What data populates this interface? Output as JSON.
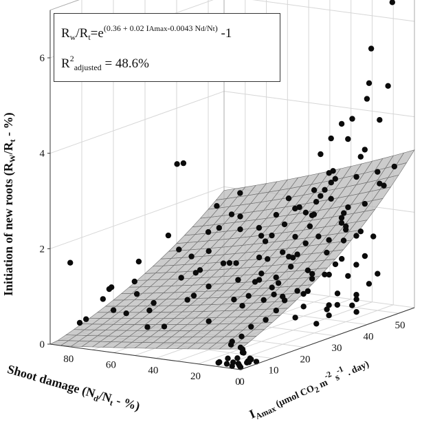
{
  "chart_data": {
    "type": "scatter",
    "subtype": "3d-scatter-with-fitted-surface",
    "equation": {
      "lhs_main": "R",
      "lhs_sub_w": "w",
      "slash": "/",
      "lhs_sub_t": "t",
      "eq": "=e",
      "exponent_a": "(0.36 + 0.02 I",
      "exponent_sub_amax": "Amax",
      "exponent_b": "-0.0043 N",
      "exponent_sub_d": "d",
      "exponent_c": "/N",
      "exponent_sub_t": "t",
      "exponent_d": ")",
      "tail": " -1"
    },
    "r2": {
      "main": "R",
      "sup": "2",
      "sub": "adjusted",
      "value": " = 48.6%"
    },
    "ylabel": {
      "a": "Initiation of new roots (R",
      "sub_w": "W",
      "b": "/R",
      "sub_t": "t",
      "c": " - %)"
    },
    "xlabel_damage": {
      "a": "Shoot damage (N",
      "sub_d": "d",
      "b": "/N",
      "sub_t": "t",
      "c": " - %)"
    },
    "xlabel_iamax": {
      "a": "I",
      "sub": "Amax",
      "b": " (μmol CO",
      "sub2": "2",
      "c": " m",
      "sup1": "-2",
      "d": " s",
      "sup2": "-1",
      "e": " . day)"
    },
    "z_ticks": [
      "0",
      "2",
      "4",
      "6"
    ],
    "damage_ticks": [
      "80",
      "60",
      "40",
      "20",
      "0"
    ],
    "iamax_ticks": [
      "0",
      "10",
      "20",
      "30",
      "40",
      "50"
    ],
    "zlim": [
      0,
      7
    ],
    "damage_range": [
      0,
      90
    ],
    "iamax_range": [
      0,
      55
    ],
    "grid": true,
    "surface_coefficients": {
      "intercept": 0.36,
      "iamax": 0.02,
      "damage": -0.0043
    },
    "points": [
      [
        0,
        0,
        0.05
      ],
      [
        1,
        0,
        0.12
      ],
      [
        2,
        1,
        0.05
      ],
      [
        0,
        2,
        0.1
      ],
      [
        3,
        1,
        0.2
      ],
      [
        2,
        2,
        0.3
      ],
      [
        4,
        0,
        0.05
      ],
      [
        1,
        3,
        0.1
      ],
      [
        3,
        2,
        0.4
      ],
      [
        5,
        1,
        0.1
      ],
      [
        2,
        4,
        0.05
      ],
      [
        4,
        3,
        0.6
      ],
      [
        6,
        0,
        0.2
      ],
      [
        8,
        1,
        0.05
      ],
      [
        5,
        4,
        0.3
      ],
      [
        3,
        5,
        0.1
      ],
      [
        7,
        2,
        0.5
      ],
      [
        10,
        0,
        0.1
      ],
      [
        6,
        5,
        0.2
      ],
      [
        4,
        6,
        0.05
      ],
      [
        9,
        3,
        0.4
      ],
      [
        12,
        1,
        0.05
      ],
      [
        1,
        4,
        0.8
      ],
      [
        0,
        5,
        0.05
      ],
      [
        10,
        34,
        0.4
      ],
      [
        15,
        38,
        0.15
      ],
      [
        8,
        36,
        0.7
      ],
      [
        18,
        40,
        0.3
      ],
      [
        12,
        42,
        0.9
      ],
      [
        20,
        44,
        0.2
      ],
      [
        5,
        40,
        0.5
      ],
      [
        22,
        36,
        1.1
      ],
      [
        14,
        46,
        0.4
      ],
      [
        25,
        38,
        0.6
      ],
      [
        7,
        44,
        1.3
      ],
      [
        30,
        40,
        0.2
      ],
      [
        17,
        34,
        1.0
      ],
      [
        2,
        38,
        0.3
      ],
      [
        26,
        44,
        0.8
      ],
      [
        11,
        48,
        0.6
      ],
      [
        33,
        42,
        0.4
      ],
      [
        4,
        46,
        0.9
      ],
      [
        28,
        34,
        1.4
      ],
      [
        19,
        48,
        0.1
      ],
      [
        36,
        40,
        1.0
      ],
      [
        9,
        30,
        0.2
      ],
      [
        24,
        30,
        0.6
      ],
      [
        15,
        28,
        0.9
      ],
      [
        6,
        32,
        1.2
      ],
      [
        31,
        32,
        0.3
      ],
      [
        13,
        26,
        0.4
      ],
      [
        21,
        42,
        1.6
      ],
      [
        38,
        36,
        0.5
      ],
      [
        3,
        34,
        1.5
      ],
      [
        16,
        44,
        1.8
      ],
      [
        10,
        40,
        2.0
      ],
      [
        23,
        38,
        2.2
      ],
      [
        27,
        40,
        1.9
      ],
      [
        5,
        36,
        2.4
      ],
      [
        14,
        38,
        2.6
      ],
      [
        19,
        36,
        2.8
      ],
      [
        8,
        42,
        3.0
      ],
      [
        12,
        36,
        3.2
      ],
      [
        25,
        42,
        2.5
      ],
      [
        3,
        40,
        3.5
      ],
      [
        17,
        40,
        3.8
      ],
      [
        9,
        38,
        4.2
      ],
      [
        6,
        44,
        4.6
      ],
      [
        15,
        42,
        2.1
      ],
      [
        2,
        42,
        5.0
      ],
      [
        11,
        44,
        1.7
      ],
      [
        30,
        44,
        2.3
      ],
      [
        20,
        46,
        1.5
      ],
      [
        4,
        48,
        2.7
      ],
      [
        28,
        46,
        1.2
      ],
      [
        1,
        44,
        3.1
      ],
      [
        22,
        32,
        1.9
      ],
      [
        35,
        44,
        1.4
      ],
      [
        7,
        46,
        5.6
      ],
      [
        3,
        50,
        6.5
      ],
      [
        13,
        48,
        3.4
      ],
      [
        18,
        42,
        2.9
      ],
      [
        26,
        36,
        2.4
      ],
      [
        10,
        32,
        3.7
      ],
      [
        1,
        36,
        4.4
      ],
      [
        0,
        38,
        2.0
      ],
      [
        0,
        42,
        1.8
      ],
      [
        0,
        34,
        2.6
      ],
      [
        0,
        30,
        1.5
      ],
      [
        5,
        28,
        2.1
      ],
      [
        2,
        30,
        3.2
      ],
      [
        8,
        28,
        1.3
      ],
      [
        14,
        30,
        2.5
      ],
      [
        40,
        38,
        0.8
      ],
      [
        33,
        36,
        2.0
      ],
      [
        9,
        50,
        4.0
      ],
      [
        16,
        50,
        2.2
      ],
      [
        24,
        48,
        1.8
      ],
      [
        5,
        52,
        3.0
      ],
      [
        12,
        52,
        2.6
      ],
      [
        20,
        50,
        0.9
      ],
      [
        2,
        48,
        4.8
      ],
      [
        6,
        38,
        3.9
      ],
      [
        11,
        34,
        2.9
      ],
      [
        18,
        30,
        1.6
      ],
      [
        27,
        28,
        0.9
      ],
      [
        35,
        30,
        1.1
      ],
      [
        42,
        34,
        1.3
      ],
      [
        45,
        40,
        1.6
      ],
      [
        40,
        44,
        2.1
      ],
      [
        48,
        38,
        0.7
      ],
      [
        37,
        48,
        1.9
      ],
      [
        31,
        50,
        2.8
      ],
      [
        44,
        46,
        1.0
      ],
      [
        50,
        36,
        0.4
      ],
      [
        46,
        30,
        0.9
      ],
      [
        53,
        42,
        1.5
      ],
      [
        38,
        26,
        0.5
      ],
      [
        29,
        24,
        1.1
      ],
      [
        21,
        22,
        0.4
      ],
      [
        33,
        20,
        0.8
      ],
      [
        44,
        24,
        1.4
      ],
      [
        52,
        28,
        2.0
      ],
      [
        56,
        34,
        1.1
      ],
      [
        60,
        40,
        2.4
      ],
      [
        64,
        30,
        1.0
      ],
      [
        58,
        22,
        0.6
      ],
      [
        68,
        26,
        1.5
      ],
      [
        72,
        34,
        0.8
      ],
      [
        76,
        28,
        1.7
      ],
      [
        80,
        20,
        0.9
      ],
      [
        84,
        24,
        1.2
      ],
      [
        70,
        18,
        0.4
      ],
      [
        62,
        14,
        0.7
      ],
      [
        54,
        12,
        0.3
      ],
      [
        46,
        16,
        0.9
      ],
      [
        78,
        12,
        0.5
      ],
      [
        86,
        16,
        0.8
      ],
      [
        66,
        8,
        0.6
      ],
      [
        74,
        6,
        0.9
      ],
      [
        82,
        4,
        0.4
      ],
      [
        58,
        6,
        1.1
      ],
      [
        50,
        4,
        0.5
      ],
      [
        88,
        10,
        0.3
      ],
      [
        88,
        5,
        1.6
      ],
      [
        40,
        8,
        1.5
      ],
      [
        64,
        2,
        1.3
      ],
      [
        30,
        10,
        0.6
      ],
      [
        36,
        14,
        1.2
      ],
      [
        26,
        16,
        1.7
      ],
      [
        42,
        28,
        2.3
      ],
      [
        48,
        32,
        1.9
      ],
      [
        22,
        26,
        2.5
      ],
      [
        16,
        24,
        1.8
      ],
      [
        10,
        20,
        1.0
      ],
      [
        6,
        16,
        1.4
      ],
      [
        30,
        2,
        4.1
      ],
      [
        36,
        4,
        4.0
      ],
      [
        24,
        6,
        2.2
      ],
      [
        4,
        10,
        1.2
      ],
      [
        70,
        44,
        1.8
      ],
      [
        60,
        48,
        1.2
      ],
      [
        80,
        38,
        1.0
      ],
      [
        56,
        46,
        0.9
      ],
      [
        66,
        50,
        1.4
      ],
      [
        74,
        42,
        2.0
      ],
      [
        52,
        50,
        2.1
      ],
      [
        84,
        46,
        1.3
      ]
    ]
  }
}
